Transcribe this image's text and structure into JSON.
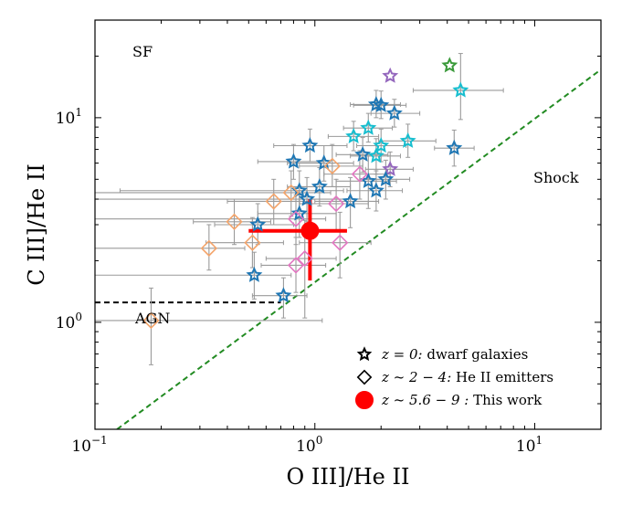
{
  "chart_data": {
    "type": "scatter",
    "xscale": "log",
    "yscale": "log",
    "xlabel": "O III]/He II",
    "ylabel": "C III]/He II",
    "xlim": [
      0.1,
      20
    ],
    "ylim": [
      0.3,
      30
    ],
    "xticks": [
      {
        "value": 0.1,
        "base": "10",
        "exp": "−1"
      },
      {
        "value": 1,
        "base": "10",
        "exp": "0"
      },
      {
        "value": 10,
        "base": "10",
        "exp": "1"
      }
    ],
    "yticks": [
      {
        "value": 1,
        "base": "10",
        "exp": "0"
      },
      {
        "value": 10,
        "base": "10",
        "exp": "1"
      }
    ],
    "region_labels": {
      "sf": "SF",
      "shock": "Shock",
      "agn": "AGN"
    },
    "legend": [
      {
        "marker": "star",
        "color": "#000000",
        "math": "z = 0:",
        "text": " dwarf galaxies"
      },
      {
        "marker": "diamond",
        "color": "#000000",
        "math": "z ~ 2 − 4:",
        "text": " He II emitters"
      },
      {
        "marker": "circle",
        "color": "#ff0000",
        "math": "z ~ 5.6 − 9 :",
        "text": "  This work"
      }
    ],
    "shock_line": {
      "points": [
        [
          0.126,
          0.3
        ],
        [
          20,
          17.2
        ]
      ],
      "color": "#228b22",
      "style": "dashed"
    },
    "agn_line": {
      "y": 1.25,
      "x": [
        0.1,
        0.7
      ],
      "color": "#000000",
      "style": "dashed"
    },
    "series": [
      {
        "name": "z = 0: dwarf galaxies",
        "marker": "star",
        "points": [
          {
            "x": 4.1,
            "y": 18.0,
            "color": "#3a9a3a"
          },
          {
            "x": 2.2,
            "y": 16.0,
            "color": "#9467bd"
          },
          {
            "x": 4.6,
            "y": 13.6,
            "color": "#17becf",
            "xerr": [
              1.8,
              2.6
            ],
            "yerr": [
              3.8,
              7.0
            ]
          },
          {
            "x": 1.9,
            "y": 11.6,
            "color": "#1f77b4",
            "xerr": [
              0.45,
              0.55
            ],
            "yerr": [
              1.6,
              2.0
            ]
          },
          {
            "x": 2.0,
            "y": 11.5,
            "color": "#1f77b4",
            "xerr": [
              0.5,
              0.6
            ],
            "yerr": [
              1.6,
              2.0
            ]
          },
          {
            "x": 2.3,
            "y": 10.5,
            "color": "#1f77b4",
            "xerr": [
              0.5,
              0.7
            ],
            "yerr": [
              1.5,
              1.8
            ]
          },
          {
            "x": 1.75,
            "y": 8.9,
            "color": "#17becf",
            "xerr": [
              0.4,
              0.5
            ],
            "yerr": [
              1.3,
              1.6
            ]
          },
          {
            "x": 1.5,
            "y": 8.1,
            "color": "#17becf",
            "xerr": [
              0.35,
              0.45
            ],
            "yerr": [
              1.2,
              1.5
            ]
          },
          {
            "x": 2.65,
            "y": 7.7,
            "color": "#17becf",
            "xerr": [
              0.7,
              0.9
            ],
            "yerr": [
              1.3,
              1.6
            ]
          },
          {
            "x": 0.95,
            "y": 7.3,
            "color": "#1f77b4",
            "xerr": [
              0.3,
              0.45
            ],
            "yerr": [
              1.2,
              1.5
            ]
          },
          {
            "x": 2.0,
            "y": 7.3,
            "color": "#17becf",
            "xerr": [
              0.45,
              0.6
            ],
            "yerr": [
              1.2,
              1.5
            ]
          },
          {
            "x": 4.3,
            "y": 7.1,
            "color": "#1f77b4",
            "xerr": [
              0.8,
              1.0
            ],
            "yerr": [
              1.3,
              1.6
            ]
          },
          {
            "x": 1.65,
            "y": 6.6,
            "color": "#1f77b4",
            "xerr": [
              0.4,
              0.5
            ],
            "yerr": [
              1.2,
              1.4
            ]
          },
          {
            "x": 1.9,
            "y": 6.5,
            "color": "#17becf",
            "xerr": [
              0.45,
              0.55
            ],
            "yerr": [
              1.2,
              1.4
            ]
          },
          {
            "x": 0.8,
            "y": 6.1,
            "color": "#1f77b4",
            "xerr": [
              0.25,
              0.3
            ],
            "yerr": [
              1.1,
              1.3
            ]
          },
          {
            "x": 1.1,
            "y": 6.0,
            "color": "#1f77b4",
            "xerr": [
              0.35,
              0.4
            ],
            "yerr": [
              1.1,
              1.3
            ]
          },
          {
            "x": 2.2,
            "y": 5.6,
            "color": "#9467bd",
            "xerr": [
              0.5,
              0.6
            ],
            "yerr": [
              1.0,
              1.2
            ]
          },
          {
            "x": 2.1,
            "y": 5.0,
            "color": "#1f77b4",
            "xerr": [
              0.5,
              0.6
            ],
            "yerr": [
              1.0,
              1.2
            ]
          },
          {
            "x": 1.75,
            "y": 4.9,
            "color": "#1f77b4",
            "xerr": [
              0.5,
              0.6
            ],
            "yerr": [
              1.3,
              1.6
            ]
          },
          {
            "x": 1.05,
            "y": 4.6,
            "color": "#1f77b4",
            "xerr": [
              0.3,
              0.4
            ],
            "yerr": [
              0.9,
              1.1
            ]
          },
          {
            "x": 0.85,
            "y": 4.4,
            "color": "#1f77b4",
            "xerr": [
              0.72,
              0.5
            ],
            "yerr": [
              0.9,
              1.1
            ]
          },
          {
            "x": 1.9,
            "y": 4.4,
            "color": "#1f77b4",
            "xerr": [
              0.5,
              0.6
            ],
            "yerr": [
              0.9,
              1.1
            ]
          },
          {
            "x": 0.92,
            "y": 4.0,
            "color": "#1f77b4",
            "xerr": [
              0.82,
              0.5
            ],
            "yerr": [
              0.9,
              1.1
            ]
          },
          {
            "x": 1.45,
            "y": 3.9,
            "color": "#1f77b4",
            "xerr": [
              0.45,
              0.5
            ],
            "yerr": [
              1.0,
              1.2
            ]
          },
          {
            "x": 0.85,
            "y": 3.4,
            "color": "#1f77b4",
            "xerr": [
              0.3,
              0.4
            ],
            "yerr": [
              0.8,
              1.0
            ]
          },
          {
            "x": 0.55,
            "y": 3.0,
            "color": "#1f77b4",
            "xerr": [
              0.2,
              0.25
            ],
            "yerr": [
              0.6,
              0.8
            ]
          },
          {
            "x": 0.53,
            "y": 1.7,
            "color": "#1f77b4",
            "xerr": [
              0.43,
              0.25
            ],
            "yerr": [
              0.4,
              0.5
            ]
          },
          {
            "x": 0.72,
            "y": 1.35,
            "color": "#1f77b4",
            "xerr": [
              0.2,
              0.2
            ],
            "yerr": [
              0.3,
              0.3
            ]
          }
        ]
      },
      {
        "name": "z ~ 2 − 4: He II emitters",
        "marker": "diamond",
        "points": [
          {
            "x": 1.2,
            "y": 5.8,
            "color": "#f4a46a",
            "xerr": [
              0.35,
              0.45
            ],
            "yerr": [
              1.2,
              1.6
            ]
          },
          {
            "x": 0.78,
            "y": 4.3,
            "color": "#f4a46a",
            "xerr": [
              0.68,
              0.4
            ],
            "yerr": [
              1.0,
              1.2
            ]
          },
          {
            "x": 0.65,
            "y": 3.9,
            "color": "#f4a46a",
            "xerr": [
              0.25,
              0.3
            ],
            "yerr": [
              0.9,
              1.1
            ]
          },
          {
            "x": 0.43,
            "y": 3.1,
            "color": "#f4a46a",
            "xerr": [
              0.15,
              0.2
            ],
            "yerr": [
              0.7,
              0.9
            ]
          },
          {
            "x": 0.33,
            "y": 2.3,
            "color": "#f4a46a",
            "xerr": [
              0.23,
              0.15
            ],
            "yerr": [
              0.5,
              0.7
            ]
          },
          {
            "x": 0.52,
            "y": 2.45,
            "color": "#f4a46a",
            "xerr": [
              0.2,
              0.2
            ],
            "yerr": [
              0.6,
              0.8
            ]
          },
          {
            "x": 0.18,
            "y": 1.02,
            "color": "#f4a46a",
            "xerr": [
              0.08,
              0.9
            ],
            "yerr": [
              0.4,
              0.45
            ]
          },
          {
            "x": 1.6,
            "y": 5.3,
            "color": "#e377c2",
            "xerr": [
              0.5,
              0.6
            ],
            "yerr": [
              1.3,
              1.6
            ]
          },
          {
            "x": 1.25,
            "y": 3.8,
            "color": "#e377c2",
            "xerr": [
              0.4,
              0.5
            ],
            "yerr": [
              1.0,
              1.2
            ]
          },
          {
            "x": 0.82,
            "y": 3.2,
            "color": "#e377c2",
            "xerr": [
              0.72,
              0.3
            ],
            "yerr": [
              0.8,
              1.0
            ]
          },
          {
            "x": 1.3,
            "y": 2.45,
            "color": "#e377c2",
            "xerr": [
              0.45,
              0.5
            ],
            "yerr": [
              0.8,
              1.0
            ]
          },
          {
            "x": 0.82,
            "y": 1.9,
            "color": "#e377c2",
            "xerr": [
              0.25,
              0.3
            ],
            "yerr": [
              0.5,
              0.7
            ]
          },
          {
            "x": 0.9,
            "y": 2.05,
            "color": "#e377c2",
            "xerr": [
              0.3,
              0.35
            ],
            "yerr": [
              1.0,
              1.1
            ]
          }
        ]
      },
      {
        "name": "z ~ 5.6 − 9 :  This work",
        "marker": "circle",
        "points": [
          {
            "x": 0.95,
            "y": 2.8,
            "color": "#ff0000",
            "xerr": [
              0.45,
              0.45
            ],
            "yerr": [
              1.2,
              1.2
            ]
          }
        ]
      }
    ]
  }
}
